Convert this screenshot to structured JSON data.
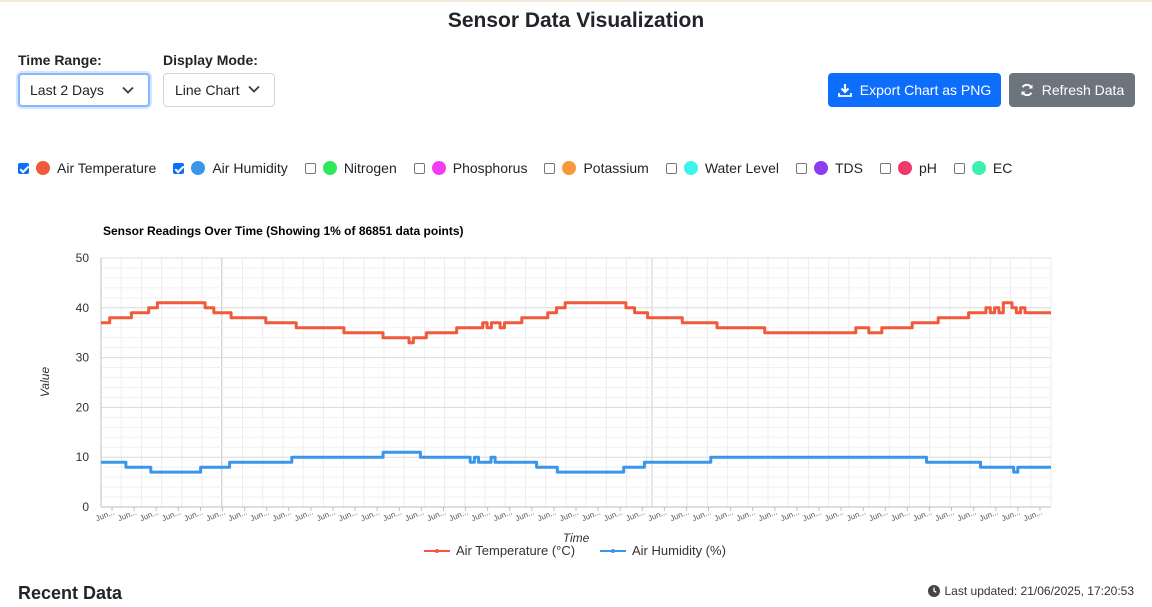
{
  "page": {
    "title": "Sensor Data Visualization"
  },
  "controls": {
    "time_range": {
      "label": "Time Range:",
      "value": "Last 2 Days"
    },
    "display_mode": {
      "label": "Display Mode:",
      "value": "Line Chart"
    },
    "export_label": "Export Chart as PNG",
    "refresh_label": "Refresh Data"
  },
  "toggles": [
    {
      "name": "air-temperature",
      "label": "Air Temperature",
      "checked": true,
      "color": "#f05a3a"
    },
    {
      "name": "air-humidity",
      "label": "Air Humidity",
      "checked": true,
      "color": "#3a96ea"
    },
    {
      "name": "nitrogen",
      "label": "Nitrogen",
      "checked": false,
      "color": "#2ee85a"
    },
    {
      "name": "phosphorus",
      "label": "Phosphorus",
      "checked": false,
      "color": "#f23ef2"
    },
    {
      "name": "potassium",
      "label": "Potassium",
      "checked": false,
      "color": "#f7993a"
    },
    {
      "name": "water-level",
      "label": "Water Level",
      "checked": false,
      "color": "#3ef2ee"
    },
    {
      "name": "tds",
      "label": "TDS",
      "checked": false,
      "color": "#8a3ef0"
    },
    {
      "name": "ph",
      "label": "pH",
      "checked": false,
      "color": "#ee3a6a"
    },
    {
      "name": "ec",
      "label": "EC",
      "checked": false,
      "color": "#3ef0b0"
    }
  ],
  "chart_data": {
    "type": "line",
    "title": "Sensor Readings Over Time (Showing 1% of 86851 data points)",
    "xlabel": "Time",
    "ylabel": "Value",
    "ylim": [
      0,
      50
    ],
    "yticks": [
      0,
      10,
      20,
      30,
      40,
      50
    ],
    "tick_label": "Jun...",
    "tick_count": 43,
    "grid": true,
    "legend_position": "bottom",
    "series": [
      {
        "name": "Air Temperature (°C)",
        "color": "#f05a3a",
        "values": [
          37,
          37,
          38,
          38,
          38,
          38,
          38,
          39,
          39,
          39,
          39,
          40,
          40,
          41,
          41,
          41,
          41,
          41,
          41,
          41,
          41,
          41,
          41,
          41,
          40,
          40,
          39,
          39,
          39,
          39,
          38,
          38,
          38,
          38,
          38,
          38,
          38,
          38,
          37,
          37,
          37,
          37,
          37,
          37,
          37,
          36,
          36,
          36,
          36,
          36,
          36,
          36,
          36,
          36,
          36,
          36,
          35,
          35,
          35,
          35,
          35,
          35,
          35,
          35,
          35,
          34,
          34,
          34,
          34,
          34,
          34,
          33,
          34,
          34,
          34,
          35,
          35,
          35,
          35,
          35,
          35,
          35,
          36,
          36,
          36,
          36,
          36,
          36,
          37,
          36,
          37,
          37,
          36,
          37,
          37,
          37,
          37,
          38,
          38,
          38,
          38,
          38,
          38,
          39,
          39,
          40,
          40,
          41,
          41,
          41,
          41,
          41,
          41,
          41,
          41,
          41,
          41,
          41,
          41,
          41,
          41,
          40,
          40,
          39,
          39,
          39,
          38,
          38,
          38,
          38,
          38,
          38,
          38,
          38,
          37,
          37,
          37,
          37,
          37,
          37,
          37,
          37,
          36,
          36,
          36,
          36,
          36,
          36,
          36,
          36,
          36,
          36,
          36,
          35,
          35,
          35,
          35,
          35,
          35,
          35,
          35,
          35,
          35,
          35,
          35,
          35,
          35,
          35,
          35,
          35,
          35,
          35,
          35,
          35,
          36,
          36,
          36,
          35,
          35,
          35,
          36,
          36,
          36,
          36,
          36,
          36,
          36,
          37,
          37,
          37,
          37,
          37,
          37,
          38,
          38,
          38,
          38,
          38,
          38,
          38,
          39,
          39,
          39,
          39,
          40,
          39,
          40,
          39,
          41,
          41,
          40,
          39,
          40,
          39,
          39,
          39,
          39,
          39,
          39
        ]
      },
      {
        "name": "Air Humidity (%)",
        "color": "#3a96ea",
        "values": [
          9,
          9,
          9,
          9,
          9,
          9,
          8,
          8,
          8,
          8,
          8,
          8,
          7,
          7,
          7,
          7,
          7,
          7,
          7,
          7,
          7,
          7,
          7,
          7,
          8,
          8,
          8,
          8,
          8,
          8,
          8,
          9,
          9,
          9,
          9,
          9,
          9,
          9,
          9,
          9,
          9,
          9,
          9,
          9,
          9,
          9,
          10,
          10,
          10,
          10,
          10,
          10,
          10,
          10,
          10,
          10,
          10,
          10,
          10,
          10,
          10,
          10,
          10,
          10,
          10,
          10,
          10,
          10,
          11,
          11,
          11,
          11,
          11,
          11,
          11,
          11,
          11,
          10,
          10,
          10,
          10,
          10,
          10,
          10,
          10,
          10,
          10,
          10,
          10,
          9,
          10,
          9,
          9,
          9,
          10,
          9,
          9,
          9,
          9,
          9,
          9,
          9,
          9,
          9,
          9,
          8,
          8,
          8,
          8,
          8,
          7,
          7,
          7,
          7,
          7,
          7,
          7,
          7,
          7,
          7,
          7,
          7,
          7,
          7,
          7,
          7,
          8,
          8,
          8,
          8,
          8,
          9,
          9,
          9,
          9,
          9,
          9,
          9,
          9,
          9,
          9,
          9,
          9,
          9,
          9,
          9,
          9,
          10,
          10,
          10,
          10,
          10,
          10,
          10,
          10,
          10,
          10,
          10,
          10,
          10,
          10,
          10,
          10,
          10,
          10,
          10,
          10,
          10,
          10,
          10,
          10,
          10,
          10,
          10,
          10,
          10,
          10,
          10,
          10,
          10,
          10,
          10,
          10,
          10,
          10,
          10,
          10,
          10,
          10,
          10,
          10,
          10,
          10,
          10,
          10,
          10,
          10,
          10,
          10,
          9,
          9,
          9,
          9,
          9,
          9,
          9,
          9,
          9,
          9,
          9,
          9,
          9,
          8,
          8,
          8,
          8,
          8,
          8,
          8,
          8,
          7,
          8,
          8,
          8,
          8,
          8,
          8,
          8,
          8
        ]
      }
    ]
  },
  "footer": {
    "recent_label": "Recent Data",
    "last_updated": "Last updated: 21/06/2025, 17:20:53"
  }
}
